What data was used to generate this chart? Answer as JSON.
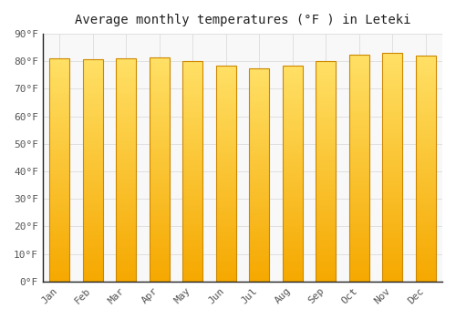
{
  "title": "Average monthly temperatures (°F ) in Leteki",
  "months": [
    "Jan",
    "Feb",
    "Mar",
    "Apr",
    "May",
    "Jun",
    "Jul",
    "Aug",
    "Sep",
    "Oct",
    "Nov",
    "Dec"
  ],
  "values": [
    81.0,
    80.8,
    81.0,
    81.5,
    80.0,
    78.5,
    77.5,
    78.5,
    80.0,
    82.5,
    83.0,
    82.0
  ],
  "bar_color_bottom": "#F5A800",
  "bar_color_top": "#FFE066",
  "bar_color_edge": "#CC8800",
  "background_color": "#FFFFFF",
  "plot_bg_color": "#F8F8F8",
  "ylim": [
    0,
    90
  ],
  "ytick_step": 10,
  "title_fontsize": 10,
  "tick_fontsize": 8,
  "grid_color": "#E0E0E0",
  "bar_width": 0.6,
  "spine_color": "#222222"
}
